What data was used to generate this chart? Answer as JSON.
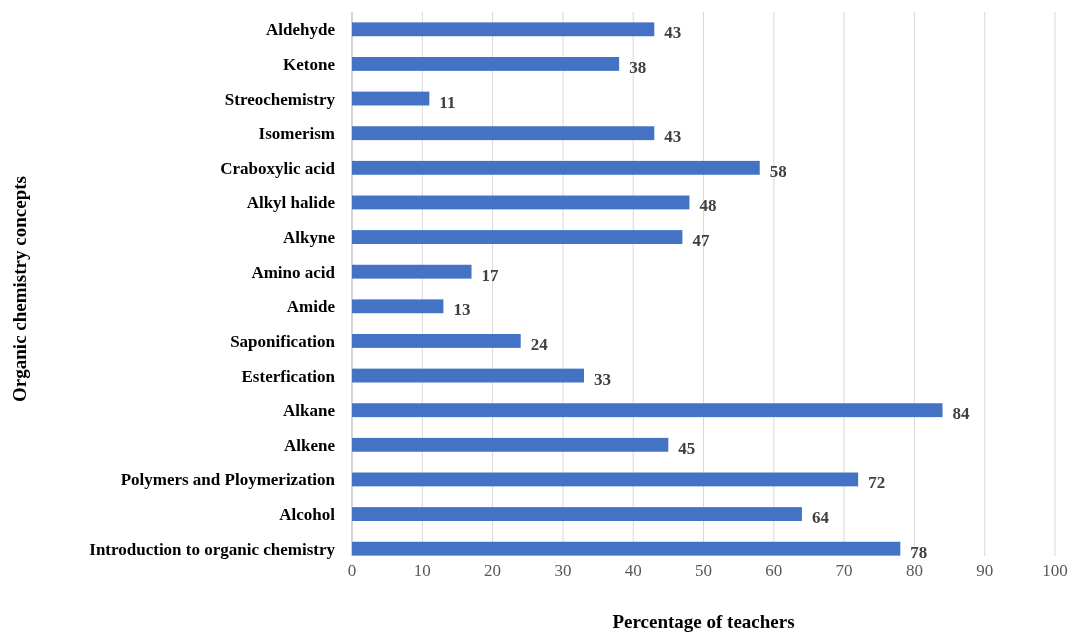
{
  "chart_data": {
    "type": "bar",
    "orientation": "horizontal",
    "xlabel": "Percentage of teachers",
    "ylabel": "Organic chemistry concepts",
    "categories": [
      "Aldehyde",
      "Ketone",
      "Streochemistry",
      "Isomerism",
      "Craboxylic acid",
      "Alkyl halide",
      "Alkyne",
      "Amino acid",
      "Amide",
      "Saponification",
      "Esterfication",
      "Alkane",
      "Alkene",
      "Polymers and Ploymerization",
      "Alcohol",
      "Introduction to organic chemistry"
    ],
    "values": [
      43,
      38,
      11,
      43,
      58,
      48,
      47,
      17,
      13,
      24,
      33,
      84,
      45,
      72,
      64,
      78
    ],
    "color": "#4472c4",
    "xlim": [
      0,
      100
    ],
    "xticks": [
      0,
      10,
      20,
      30,
      40,
      50,
      60,
      70,
      80,
      90,
      100
    ],
    "grid": "x",
    "data_labels": true
  }
}
